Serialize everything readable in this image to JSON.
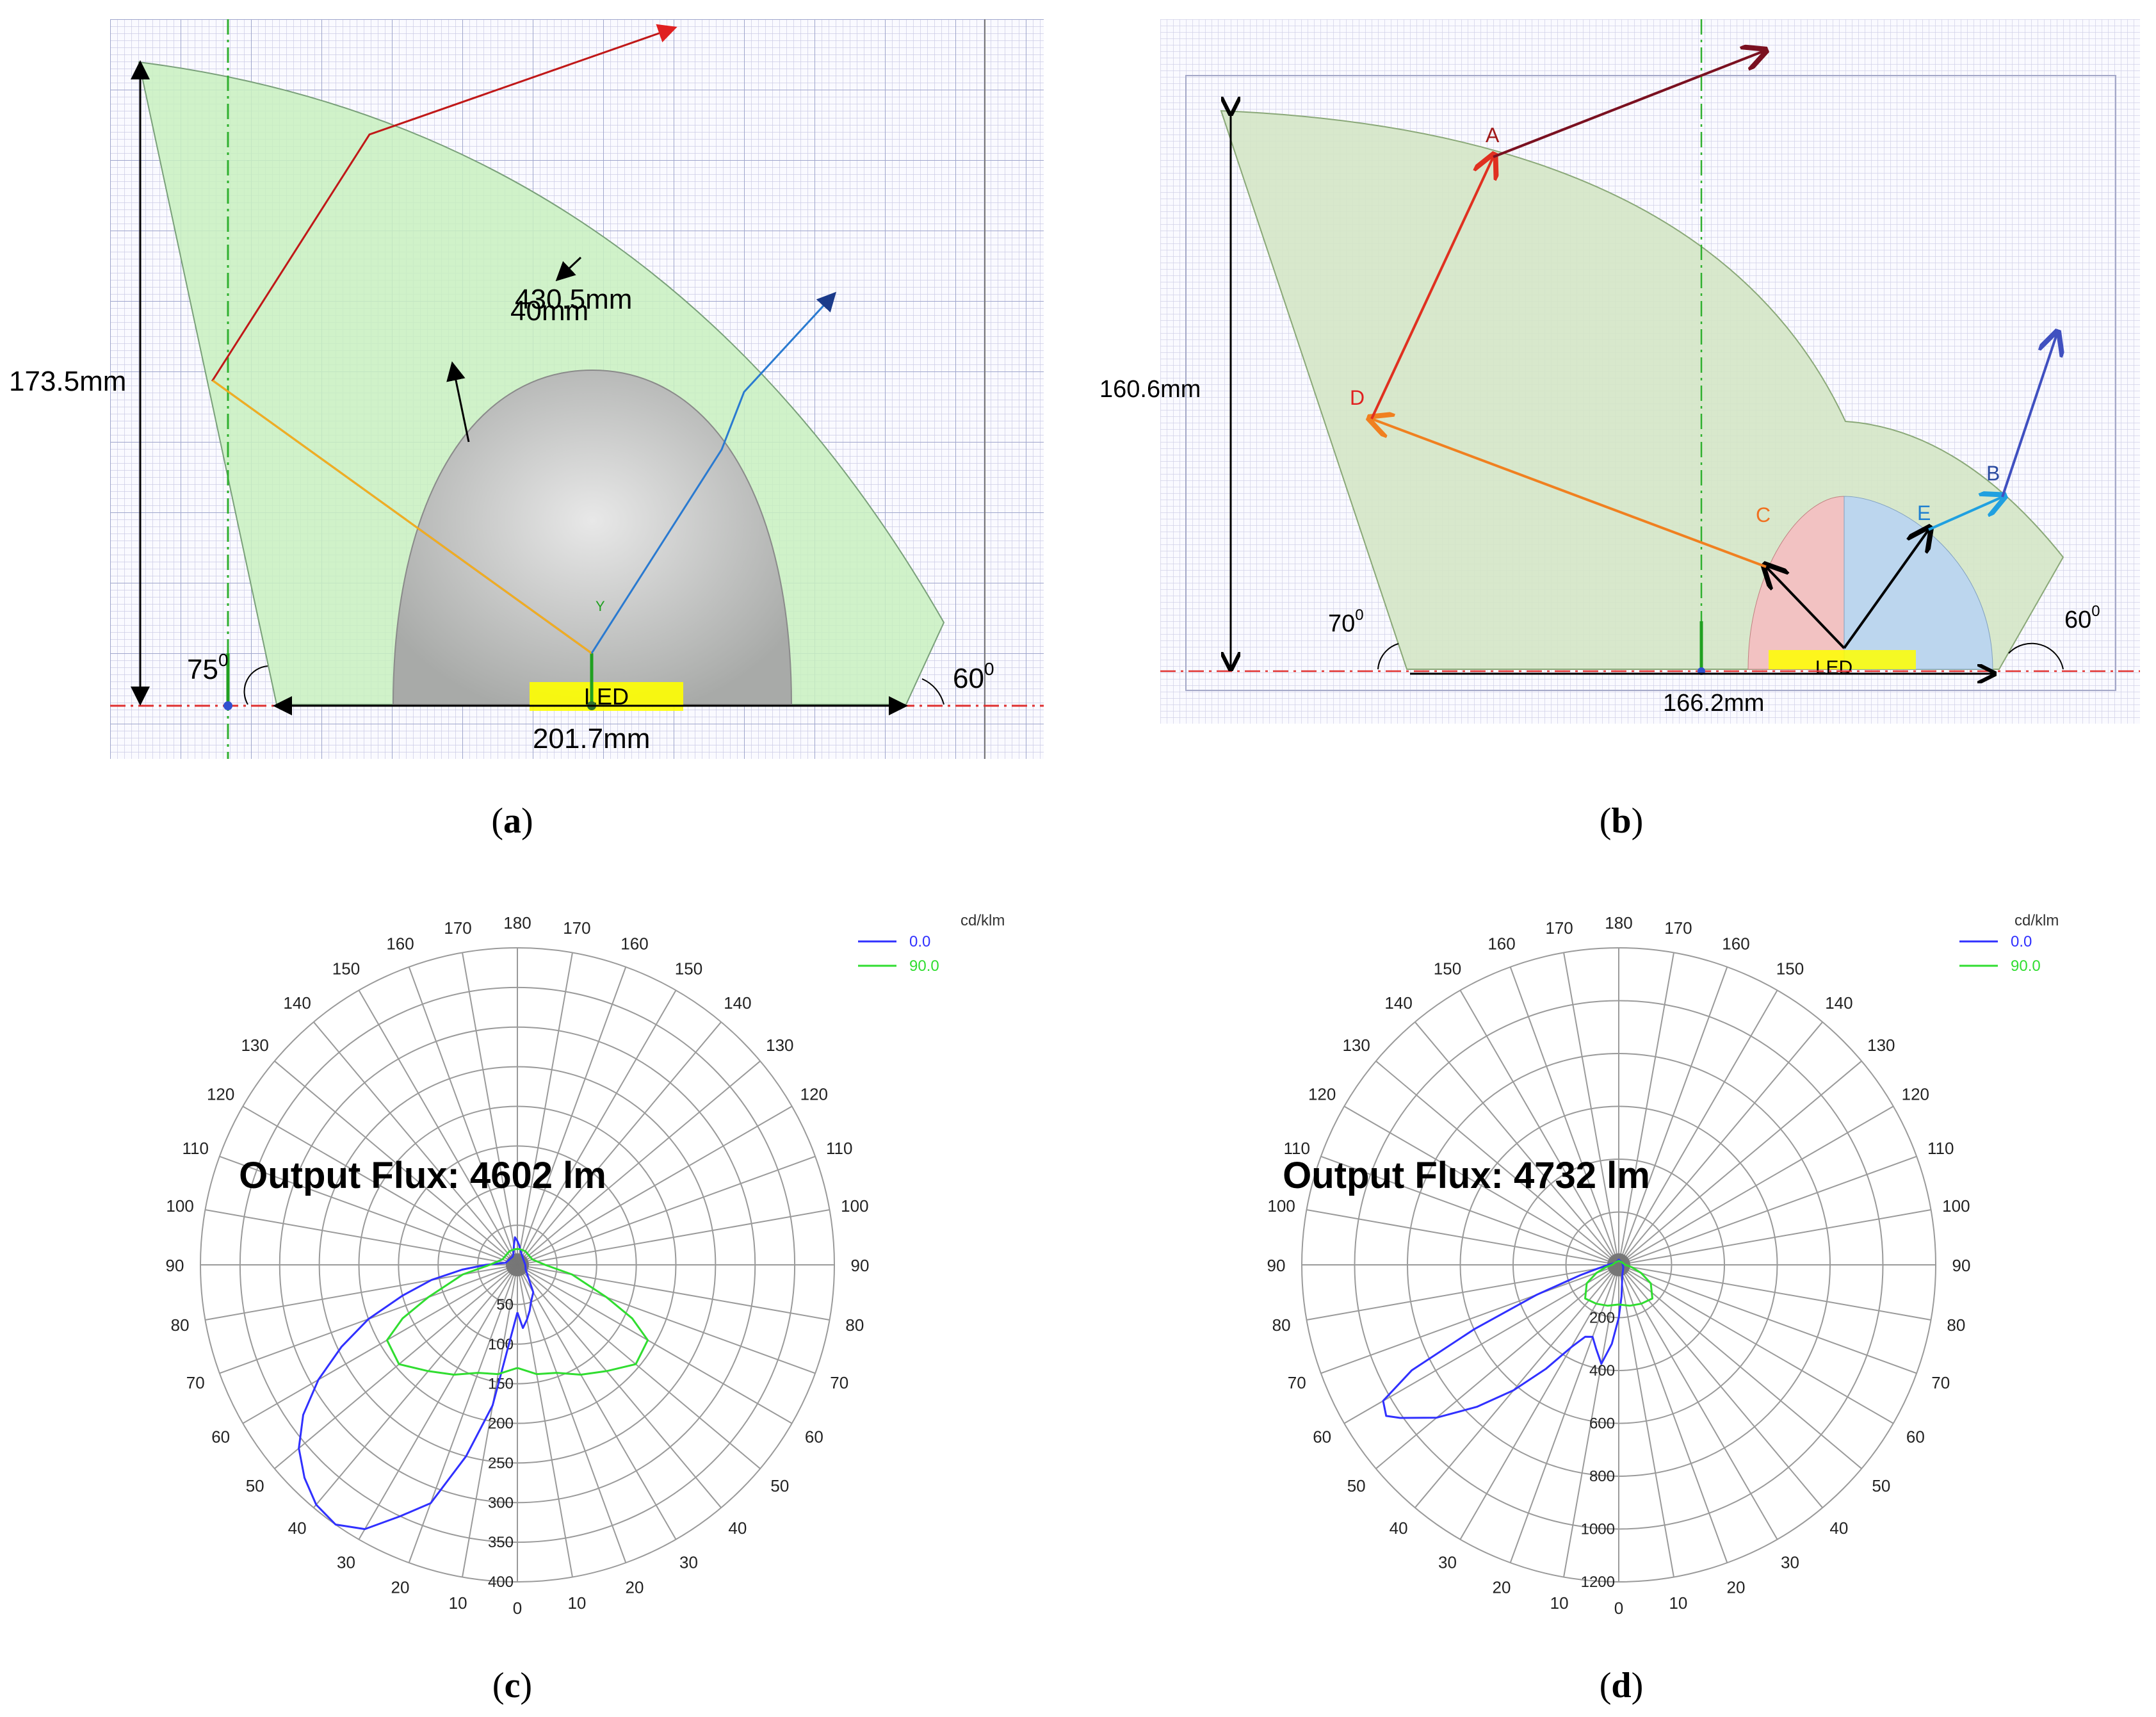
{
  "figure": {
    "panels": [
      {
        "id": "a",
        "caption": "a"
      },
      {
        "id": "b",
        "caption": "b"
      },
      {
        "id": "c",
        "caption": "c"
      },
      {
        "id": "d",
        "caption": "d"
      }
    ]
  },
  "panel_a": {
    "height_label": "173.5mm",
    "outer_radius_label": "430.5mm",
    "inner_radius_label": "40mm",
    "left_angle_label": "75",
    "right_angle_label": "60",
    "angle_superscript": "0",
    "width_label": "201.7mm",
    "source_label": "LED",
    "axis_y_label": "Y",
    "colors": {
      "reflector": "#c8f0c0",
      "lens": "#b8bab8",
      "grid": "#c9c9e3",
      "led": "#ffff00"
    }
  },
  "panel_b": {
    "height_label": "160.6mm",
    "left_angle_label": "70",
    "right_angle_label": "60",
    "angle_superscript": "0",
    "width_label": "166.2mm",
    "source_label": "LED",
    "points": {
      "a": "A",
      "b": "B",
      "c": "C",
      "d": "D",
      "e": "E"
    },
    "colors": {
      "reflector": "#d4e6c6",
      "lens_left": "#f2c2c2",
      "lens_right": "#bcd6ee"
    }
  },
  "chart_data": [
    {
      "type": "polar",
      "title": "Output Flux: 4602 lm",
      "unit": "cd/klm",
      "angle_labels_left": [
        "0",
        "10",
        "20",
        "30",
        "40",
        "50",
        "60",
        "70",
        "80",
        "90",
        "100",
        "110",
        "120",
        "130",
        "140",
        "150",
        "160",
        "170",
        "180"
      ],
      "angle_labels_right": [
        "10",
        "20",
        "30",
        "40",
        "50",
        "60",
        "70",
        "80",
        "90",
        "100",
        "110",
        "120",
        "130",
        "140",
        "150",
        "160",
        "170"
      ],
      "radial_ticks": [
        50,
        100,
        150,
        200,
        250,
        300,
        350,
        400
      ],
      "radial_labels": [
        "50",
        "100",
        "150",
        "200",
        "250",
        "300",
        "350",
        "400"
      ],
      "r_max": 400,
      "series": [
        {
          "name": "0.0",
          "color": "#3030ff",
          "points": [
            [
              0,
              60
            ],
            [
              10,
              180
            ],
            [
              15,
              250
            ],
            [
              20,
              320
            ],
            [
              25,
              350
            ],
            [
              30,
              385
            ],
            [
              35,
              400
            ],
            [
              40,
              395
            ],
            [
              45,
              380
            ],
            [
              50,
              360
            ],
            [
              55,
              330
            ],
            [
              60,
              290
            ],
            [
              65,
              245
            ],
            [
              70,
              200
            ],
            [
              75,
              150
            ],
            [
              80,
              110
            ],
            [
              85,
              70
            ],
            [
              90,
              40
            ],
            [
              100,
              15
            ],
            [
              150,
              12
            ],
            [
              160,
              15
            ],
            [
              170,
              25
            ],
            [
              175,
              35
            ],
            [
              180,
              30
            ],
            [
              185,
              25
            ],
            [
              190,
              20
            ],
            [
              200,
              15
            ],
            [
              230,
              10
            ],
            [
              270,
              10
            ],
            [
              300,
              12
            ],
            [
              330,
              40
            ],
            [
              340,
              50
            ],
            [
              345,
              60
            ],
            [
              350,
              70
            ],
            [
              355,
              80
            ],
            [
              360,
              60
            ]
          ]
        },
        {
          "name": "90.0",
          "color": "#30dd30",
          "points": [
            [
              0,
              130
            ],
            [
              10,
              140
            ],
            [
              20,
              145
            ],
            [
              30,
              160
            ],
            [
              40,
              175
            ],
            [
              50,
              195
            ],
            [
              60,
              190
            ],
            [
              65,
              160
            ],
            [
              70,
              120
            ],
            [
              80,
              70
            ],
            [
              90,
              35
            ],
            [
              110,
              20
            ],
            [
              150,
              20
            ],
            [
              170,
              20
            ],
            [
              180,
              20
            ],
            [
              190,
              20
            ],
            [
              210,
              20
            ],
            [
              250,
              20
            ],
            [
              270,
              35
            ],
            [
              280,
              70
            ],
            [
              290,
              120
            ],
            [
              295,
              160
            ],
            [
              300,
              190
            ],
            [
              310,
              195
            ],
            [
              320,
              175
            ],
            [
              330,
              160
            ],
            [
              340,
              145
            ],
            [
              350,
              140
            ],
            [
              360,
              130
            ]
          ]
        }
      ]
    },
    {
      "type": "polar",
      "title": "Output Flux: 4732 lm",
      "unit": "cd/klm",
      "angle_labels_left": [
        "0",
        "10",
        "20",
        "30",
        "40",
        "50",
        "60",
        "70",
        "80",
        "90",
        "100",
        "110",
        "120",
        "130",
        "140",
        "150",
        "160",
        "170",
        "180"
      ],
      "angle_labels_right": [
        "10",
        "20",
        "30",
        "40",
        "50",
        "60",
        "70",
        "80",
        "90",
        "100",
        "110",
        "120",
        "130",
        "140",
        "150",
        "160",
        "170"
      ],
      "radial_ticks": [
        200,
        400,
        600,
        800,
        1000,
        1200
      ],
      "radial_labels": [
        "200",
        "400",
        "600",
        "800",
        "1000",
        "1200"
      ],
      "r_max": 1200,
      "series": [
        {
          "name": "0.0",
          "color": "#3030ff",
          "points": [
            [
              0,
              200
            ],
            [
              5,
              300
            ],
            [
              10,
              380
            ],
            [
              15,
              330
            ],
            [
              20,
              290
            ],
            [
              25,
              300
            ],
            [
              30,
              360
            ],
            [
              35,
              480
            ],
            [
              40,
              620
            ],
            [
              45,
              760
            ],
            [
              50,
              900
            ],
            [
              55,
              1010
            ],
            [
              57,
              1050
            ],
            [
              60,
              1030
            ],
            [
              63,
              880
            ],
            [
              66,
              600
            ],
            [
              70,
              330
            ],
            [
              75,
              150
            ],
            [
              80,
              80
            ],
            [
              90,
              40
            ],
            [
              120,
              15
            ],
            [
              180,
              20
            ],
            [
              240,
              15
            ],
            [
              300,
              20
            ],
            [
              340,
              40
            ],
            [
              355,
              120
            ],
            [
              360,
              200
            ]
          ]
        },
        {
          "name": "90.0",
          "color": "#30dd30",
          "points": [
            [
              0,
              150
            ],
            [
              15,
              160
            ],
            [
              30,
              170
            ],
            [
              45,
              180
            ],
            [
              60,
              140
            ],
            [
              70,
              90
            ],
            [
              80,
              50
            ],
            [
              90,
              25
            ],
            [
              130,
              15
            ],
            [
              180,
              15
            ],
            [
              230,
              15
            ],
            [
              270,
              25
            ],
            [
              280,
              50
            ],
            [
              290,
              90
            ],
            [
              300,
              140
            ],
            [
              315,
              180
            ],
            [
              330,
              170
            ],
            [
              345,
              160
            ],
            [
              360,
              150
            ]
          ]
        }
      ]
    }
  ]
}
